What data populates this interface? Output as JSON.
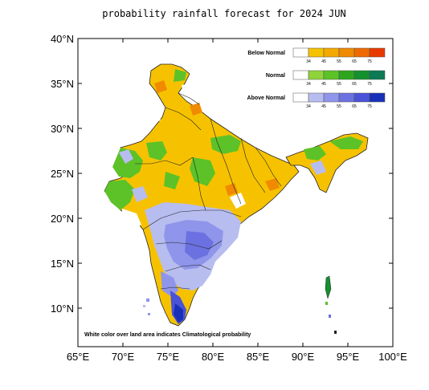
{
  "title": "probability rainfall forecast for 2024 JUN",
  "x_ticks": [
    "65°E",
    "70°E",
    "75°E",
    "80°E",
    "85°E",
    "90°E",
    "95°E",
    "100°E"
  ],
  "y_ticks": [
    "40°N",
    "35°N",
    "30°N",
    "25°N",
    "20°N",
    "15°N",
    "10°N"
  ],
  "legend": [
    {
      "title": "Below Normal",
      "ticks": [
        "34",
        "45",
        "55",
        "65",
        "75"
      ],
      "colors": [
        "#ffffff",
        "#f6c200",
        "#f4a900",
        "#f08a00",
        "#ee6a00",
        "#e83a00"
      ]
    },
    {
      "title": "Normal",
      "ticks": [
        "34",
        "45",
        "55",
        "65",
        "75"
      ],
      "colors": [
        "#ffffff",
        "#8fd33a",
        "#5cc228",
        "#2ea51f",
        "#15902f",
        "#0b7a55"
      ]
    },
    {
      "title": "Above Normal",
      "ticks": [
        "34",
        "45",
        "55",
        "65",
        "75"
      ],
      "colors": [
        "#ffffff",
        "#b8bdf0",
        "#8f95ea",
        "#6b71e0",
        "#4a52d6",
        "#1830b8"
      ]
    }
  ],
  "note": "White color over land area indicates Climatological probability"
}
